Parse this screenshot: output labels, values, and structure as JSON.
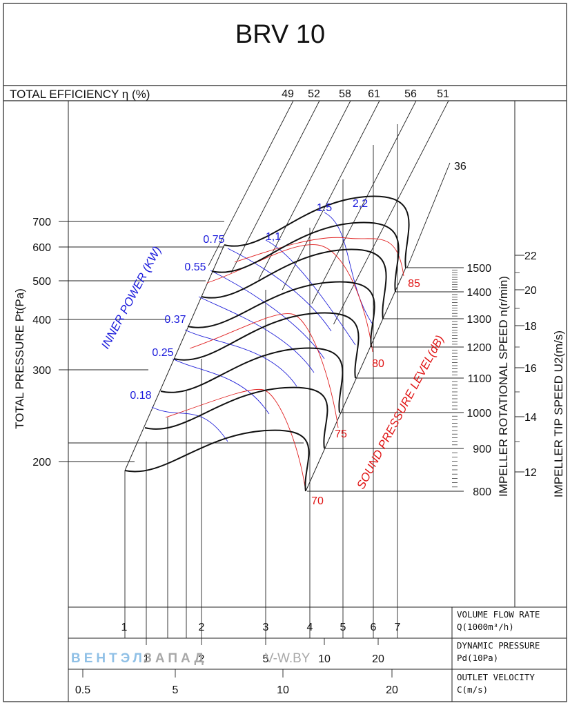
{
  "chart_data": {
    "type": "line",
    "title": "BRV 10",
    "efficiency_label": "TOTAL EFFICIENCY η (%)",
    "efficiency_values": [
      "49",
      "52",
      "58",
      "61",
      "56",
      "51"
    ],
    "efficiency_extra": "36",
    "ylabel": "TOTAL PRESSURE Pt(Pa)",
    "y_ticks": [
      "700",
      "600",
      "500",
      "400",
      "300",
      "200"
    ],
    "speed_label": "IMPELLER ROTATIONAL SPEED n(r/min)",
    "speed_ticks": [
      "1500",
      "1400",
      "1300",
      "1200",
      "1100",
      "1000",
      "900",
      "800"
    ],
    "tip_label": "IMPELLER TIP SPEED U2(m/s)",
    "tip_ticks": [
      "22",
      "20",
      "18",
      "16",
      "14",
      "12"
    ],
    "power_label": "INNER POWER (KW)",
    "power_values": [
      "0.75",
      "1,1",
      "1.5",
      "2,2",
      "0.55",
      "0.37",
      "0.25",
      "0.18"
    ],
    "sound_label": "SOUND PRESSURE LEVEL(dB)",
    "sound_values": [
      "85",
      "80",
      "75",
      "70"
    ],
    "flow_label_1": "VOLUME FLOW RATE",
    "flow_label_2": "Q(1000m³/h)",
    "flow_ticks": [
      "1",
      "2",
      "3",
      "4",
      "5",
      "6",
      "7"
    ],
    "dyn_label_1": "DYNAMIC PRESSURE",
    "dyn_label_2": "Pd(10Pa)",
    "dyn_ticks": [
      "1",
      "2",
      "5",
      "10",
      "20"
    ],
    "vel_label_1": "OUTLET VELOCITY",
    "vel_label_2": "C(m/s)",
    "vel_ticks": [
      "0.5",
      "5",
      "10",
      "20"
    ]
  },
  "watermark": {
    "part1": "ВЕНТЭЛ",
    "part2": "ЗАПАД",
    "part3": "V-W.BY"
  }
}
